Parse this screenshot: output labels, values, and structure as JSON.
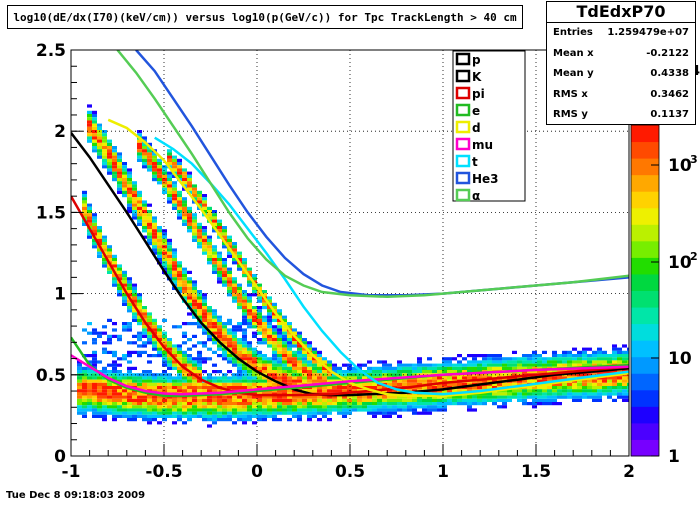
{
  "title": "log10(dE/dx(I70)(keV/cm)) versus log10(p(GeV/c)) for Tpc TrackLength > 40 cm",
  "timestamp": "Tue Dec  8 09:18:03 2009",
  "stats": {
    "name": "TdEdxP70",
    "rows": [
      {
        "label": "Entries",
        "value": "1.259479e+07"
      },
      {
        "label": "Mean x",
        "value": "-0.2122"
      },
      {
        "label": "Mean y",
        "value": "0.4338"
      },
      {
        "label": "RMS x",
        "value": "0.3462"
      },
      {
        "label": "RMS y",
        "value": "0.1137"
      }
    ]
  },
  "palette": {
    "tick_labels": [
      "1",
      "10",
      "10",
      "10"
    ],
    "exponents": [
      "",
      "",
      "2",
      "3"
    ],
    "partial_label": "4",
    "colors": [
      "#7700ff",
      "#4b00ff",
      "#1d00ff",
      "#0033ff",
      "#0066ff",
      "#0099ff",
      "#00c0ff",
      "#00dddd",
      "#00e6a8",
      "#00e070",
      "#00d840",
      "#22dd00",
      "#77ee00",
      "#bbf000",
      "#eef000",
      "#ffd200",
      "#ffa800",
      "#ff7800",
      "#ff4a00",
      "#ff1a00"
    ]
  },
  "chart_data": {
    "type": "heatmap",
    "title": "log10(dE/dx(I70)(keV/cm)) versus log10(p(GeV/c)) for Tpc TrackLength > 40 cm",
    "xlabel": "",
    "ylabel": "",
    "xlim": [
      -1,
      2
    ],
    "ylim": [
      0,
      2.5
    ],
    "x_ticks": [
      "-1",
      "-0.5",
      "0",
      "0.5",
      "1",
      "1.5",
      "2"
    ],
    "y_ticks": [
      "0",
      "0.5",
      "1",
      "1.5",
      "2",
      "2.5"
    ],
    "grid": true,
    "z_scale": "log",
    "legend_placement": "top-right",
    "series": [
      {
        "name": "p",
        "color": "#000000",
        "points": []
      },
      {
        "name": "K",
        "color": "#000000",
        "points": [
          [
            -1.0,
            1.99
          ],
          [
            -0.9,
            1.84
          ],
          [
            -0.8,
            1.67
          ],
          [
            -0.7,
            1.5
          ],
          [
            -0.6,
            1.32
          ],
          [
            -0.5,
            1.14
          ],
          [
            -0.4,
            0.97
          ],
          [
            -0.3,
            0.82
          ],
          [
            -0.2,
            0.7
          ],
          [
            -0.1,
            0.6
          ],
          [
            0.0,
            0.52
          ],
          [
            0.1,
            0.46
          ],
          [
            0.2,
            0.41
          ],
          [
            0.3,
            0.38
          ],
          [
            0.4,
            0.375
          ],
          [
            0.5,
            0.375
          ],
          [
            0.6,
            0.38
          ],
          [
            0.7,
            0.385
          ],
          [
            0.8,
            0.39
          ],
          [
            0.9,
            0.4
          ],
          [
            1.0,
            0.41
          ],
          [
            1.2,
            0.44
          ],
          [
            1.4,
            0.47
          ],
          [
            1.6,
            0.5
          ],
          [
            1.8,
            0.52
          ],
          [
            2.0,
            0.54
          ]
        ]
      },
      {
        "name": "pi",
        "color": "#dd0000",
        "points": [
          [
            -1.0,
            1.6
          ],
          [
            -0.9,
            1.4
          ],
          [
            -0.8,
            1.2
          ],
          [
            -0.7,
            1.0
          ],
          [
            -0.6,
            0.82
          ],
          [
            -0.5,
            0.67
          ],
          [
            -0.4,
            0.55
          ],
          [
            -0.3,
            0.47
          ],
          [
            -0.2,
            0.42
          ],
          [
            -0.1,
            0.39
          ],
          [
            0.0,
            0.375
          ],
          [
            0.2,
            0.375
          ],
          [
            0.4,
            0.38
          ],
          [
            0.6,
            0.4
          ],
          [
            0.8,
            0.42
          ],
          [
            1.0,
            0.45
          ],
          [
            1.2,
            0.47
          ],
          [
            1.4,
            0.49
          ],
          [
            1.6,
            0.51
          ],
          [
            1.8,
            0.53
          ],
          [
            2.0,
            0.55
          ]
        ]
      },
      {
        "name": "e",
        "color": "#22bb22",
        "points": [
          [
            -1.0,
            0.73
          ],
          [
            -0.9,
            0.56
          ],
          [
            -0.8,
            0.47
          ],
          [
            -0.7,
            0.42
          ],
          [
            -0.6,
            0.39
          ],
          [
            -0.5,
            0.37
          ],
          [
            -0.4,
            0.37
          ],
          [
            -0.2,
            0.38
          ],
          [
            0.0,
            0.4
          ],
          [
            0.3,
            0.43
          ],
          [
            0.6,
            0.46
          ],
          [
            1.0,
            0.5
          ],
          [
            1.5,
            0.53
          ],
          [
            2.0,
            0.56
          ]
        ]
      },
      {
        "name": "d",
        "color": "#eeee00",
        "points": [
          [
            -0.8,
            2.07
          ],
          [
            -0.7,
            2.02
          ],
          [
            -0.6,
            1.93
          ],
          [
            -0.5,
            1.82
          ],
          [
            -0.4,
            1.67
          ],
          [
            -0.3,
            1.52
          ],
          [
            -0.2,
            1.36
          ],
          [
            -0.1,
            1.2
          ],
          [
            0.0,
            1.04
          ],
          [
            0.1,
            0.88
          ],
          [
            0.2,
            0.74
          ],
          [
            0.3,
            0.62
          ],
          [
            0.4,
            0.52
          ],
          [
            0.5,
            0.45
          ],
          [
            0.6,
            0.41
          ],
          [
            0.7,
            0.38
          ],
          [
            0.8,
            0.37
          ],
          [
            0.9,
            0.37
          ],
          [
            1.0,
            0.37
          ],
          [
            1.2,
            0.39
          ],
          [
            1.4,
            0.42
          ],
          [
            1.6,
            0.45
          ],
          [
            1.8,
            0.48
          ],
          [
            2.0,
            0.51
          ]
        ]
      },
      {
        "name": "mu",
        "color": "#ff00cc",
        "points": [
          [
            -1.0,
            0.62
          ],
          [
            -0.9,
            0.55
          ],
          [
            -0.8,
            0.48
          ],
          [
            -0.7,
            0.43
          ],
          [
            -0.6,
            0.4
          ],
          [
            -0.5,
            0.385
          ],
          [
            -0.4,
            0.38
          ],
          [
            -0.2,
            0.39
          ],
          [
            0.0,
            0.41
          ],
          [
            0.2,
            0.43
          ],
          [
            0.5,
            0.46
          ],
          [
            1.0,
            0.5
          ],
          [
            1.5,
            0.53
          ],
          [
            2.0,
            0.55
          ]
        ]
      },
      {
        "name": "t",
        "color": "#00e0ff",
        "points": [
          [
            -0.55,
            1.96
          ],
          [
            -0.45,
            1.89
          ],
          [
            -0.35,
            1.8
          ],
          [
            -0.25,
            1.68
          ],
          [
            -0.15,
            1.55
          ],
          [
            -0.05,
            1.4
          ],
          [
            0.05,
            1.25
          ],
          [
            0.15,
            1.09
          ],
          [
            0.25,
            0.92
          ],
          [
            0.35,
            0.77
          ],
          [
            0.45,
            0.64
          ],
          [
            0.55,
            0.53
          ],
          [
            0.65,
            0.45
          ],
          [
            0.75,
            0.41
          ],
          [
            0.85,
            0.39
          ],
          [
            1.0,
            0.38
          ],
          [
            1.2,
            0.4
          ],
          [
            1.4,
            0.43
          ],
          [
            1.6,
            0.46
          ],
          [
            1.8,
            0.49
          ],
          [
            2.0,
            0.52
          ]
        ]
      },
      {
        "name": "He3",
        "color": "#2255dd",
        "points": [
          [
            -0.65,
            2.5
          ],
          [
            -0.55,
            2.37
          ],
          [
            -0.45,
            2.2
          ],
          [
            -0.35,
            2.03
          ],
          [
            -0.25,
            1.85
          ],
          [
            -0.15,
            1.67
          ],
          [
            -0.05,
            1.5
          ],
          [
            0.05,
            1.35
          ],
          [
            0.15,
            1.22
          ],
          [
            0.25,
            1.12
          ],
          [
            0.35,
            1.05
          ],
          [
            0.45,
            1.01
          ],
          [
            0.6,
            0.99
          ],
          [
            0.8,
            0.99
          ],
          [
            1.0,
            1.0
          ],
          [
            1.2,
            1.02
          ],
          [
            1.4,
            1.04
          ],
          [
            1.6,
            1.06
          ],
          [
            1.8,
            1.08
          ],
          [
            2.0,
            1.1
          ]
        ]
      },
      {
        "name": "α",
        "color": "#55cc55",
        "points": [
          [
            -0.75,
            2.5
          ],
          [
            -0.65,
            2.36
          ],
          [
            -0.55,
            2.2
          ],
          [
            -0.45,
            2.03
          ],
          [
            -0.35,
            1.86
          ],
          [
            -0.25,
            1.68
          ],
          [
            -0.15,
            1.5
          ],
          [
            -0.05,
            1.34
          ],
          [
            0.05,
            1.21
          ],
          [
            0.15,
            1.11
          ],
          [
            0.25,
            1.05
          ],
          [
            0.35,
            1.01
          ],
          [
            0.5,
            0.99
          ],
          [
            0.7,
            0.98
          ],
          [
            0.9,
            0.99
          ],
          [
            1.1,
            1.01
          ],
          [
            1.3,
            1.03
          ],
          [
            1.5,
            1.05
          ],
          [
            1.7,
            1.07
          ],
          [
            2.0,
            1.11
          ]
        ]
      }
    ],
    "bands": [
      {
        "points": [
          [
            -0.92,
            2.05
          ],
          [
            -0.8,
            1.85
          ],
          [
            -0.7,
            1.65
          ],
          [
            -0.6,
            1.45
          ],
          [
            -0.5,
            1.25
          ],
          [
            -0.4,
            1.05
          ],
          [
            -0.3,
            0.88
          ],
          [
            -0.2,
            0.74
          ],
          [
            -0.1,
            0.63
          ],
          [
            0.0,
            0.55
          ],
          [
            0.1,
            0.49
          ],
          [
            0.2,
            0.45
          ],
          [
            0.3,
            0.42
          ]
        ],
        "width": 0.09
      },
      {
        "points": [
          [
            -0.95,
            1.55
          ],
          [
            -0.9,
            1.42
          ],
          [
            -0.8,
            1.2
          ],
          [
            -0.7,
            1.0
          ],
          [
            -0.6,
            0.82
          ],
          [
            -0.5,
            0.67
          ],
          [
            -0.4,
            0.55
          ],
          [
            -0.3,
            0.47
          ]
        ],
        "width": 0.08
      },
      {
        "points": [
          [
            -0.65,
            1.92
          ],
          [
            -0.55,
            1.78
          ],
          [
            -0.45,
            1.6
          ],
          [
            -0.35,
            1.42
          ],
          [
            -0.25,
            1.24
          ],
          [
            -0.15,
            1.06
          ],
          [
            -0.05,
            0.9
          ],
          [
            0.05,
            0.75
          ],
          [
            0.15,
            0.62
          ],
          [
            0.25,
            0.52
          ],
          [
            0.35,
            0.46
          ]
        ],
        "width": 0.07
      },
      {
        "points": [
          [
            -0.5,
            1.86
          ],
          [
            -0.4,
            1.72
          ],
          [
            -0.3,
            1.55
          ],
          [
            -0.2,
            1.38
          ],
          [
            -0.1,
            1.2
          ],
          [
            0.0,
            1.02
          ],
          [
            0.1,
            0.86
          ],
          [
            0.2,
            0.72
          ],
          [
            0.3,
            0.6
          ],
          [
            0.4,
            0.51
          ]
        ],
        "width": 0.05
      },
      {
        "points": [
          [
            -1.0,
            0.42
          ],
          [
            -0.8,
            0.4
          ],
          [
            -0.6,
            0.38
          ],
          [
            -0.4,
            0.37
          ],
          [
            -0.2,
            0.37
          ],
          [
            0.0,
            0.38
          ],
          [
            0.2,
            0.39
          ],
          [
            0.5,
            0.41
          ],
          [
            1.0,
            0.45
          ],
          [
            1.5,
            0.49
          ],
          [
            2.0,
            0.52
          ]
        ],
        "width": 0.12
      }
    ]
  }
}
